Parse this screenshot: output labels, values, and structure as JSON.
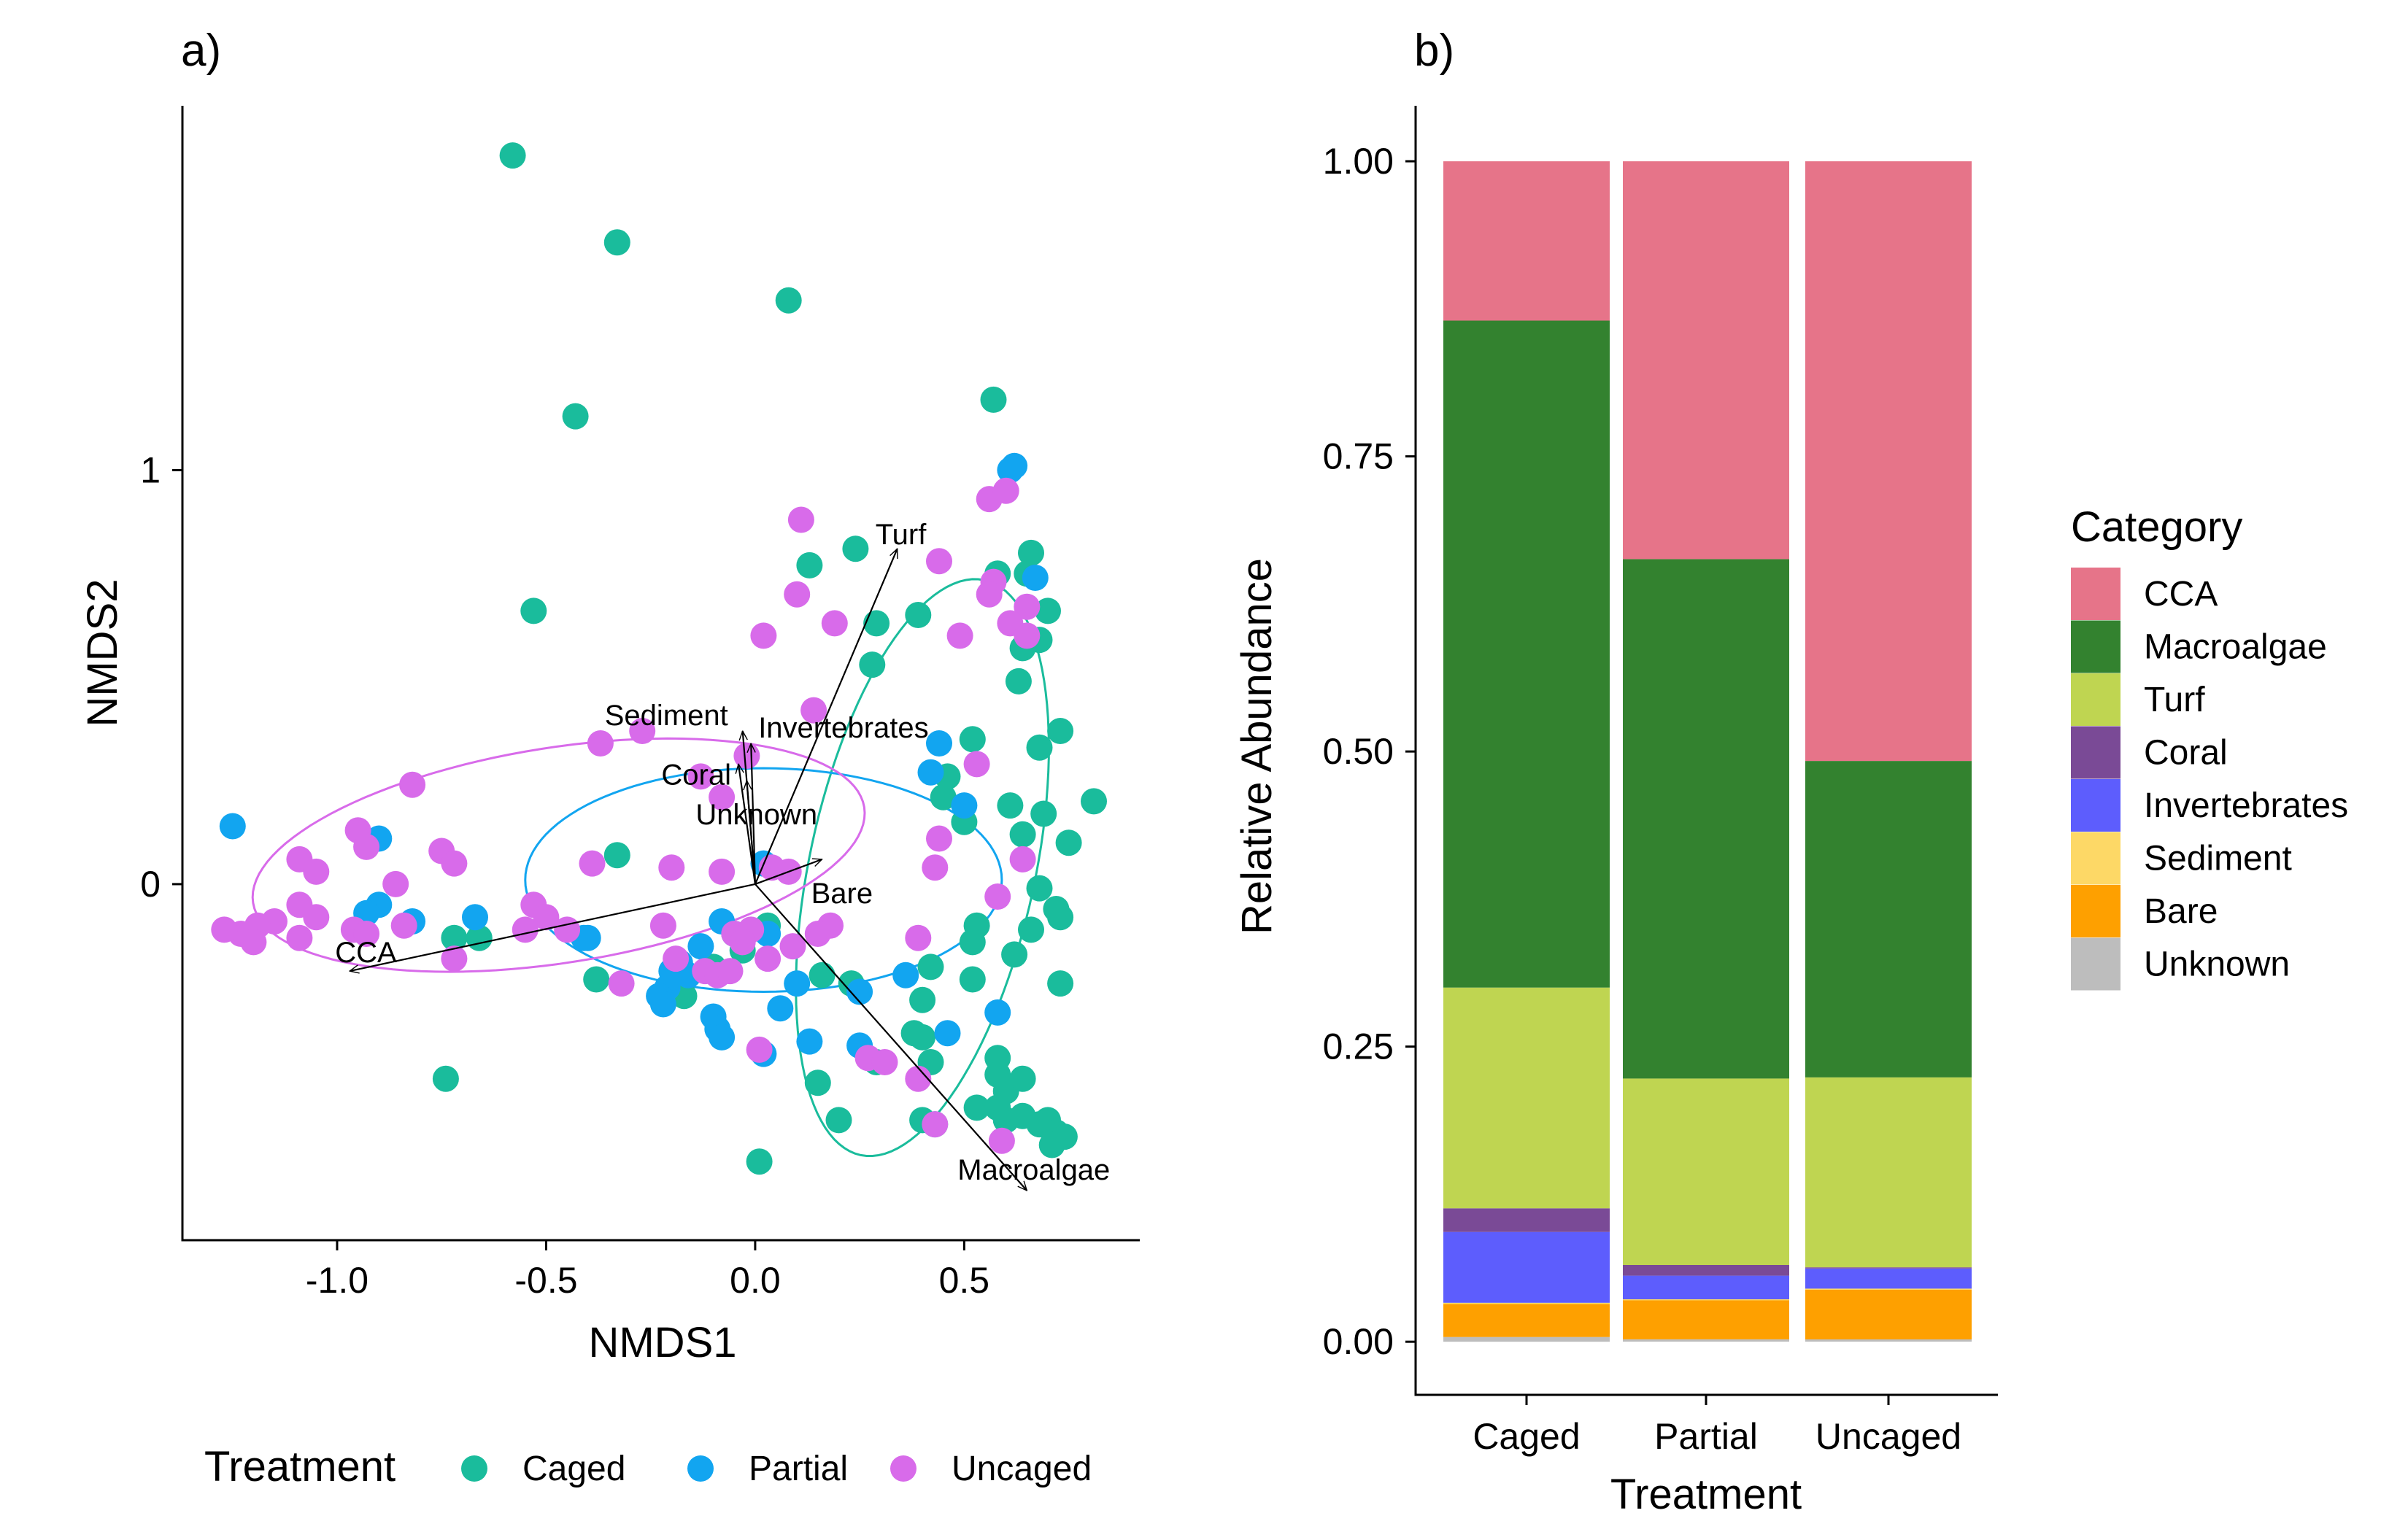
{
  "panels": {
    "a": {
      "tag": "a)"
    },
    "b": {
      "tag": "b)"
    }
  },
  "colors": {
    "Caged": "#1abc9c",
    "Partial": "#12a5f0",
    "Uncaged": "#d86bea",
    "CCA": "#e67489",
    "Macroalgae": "#33822f",
    "Turf": "#bfd551",
    "Coral": "#7a4a96",
    "Invertebrates": "#5d5dfd",
    "Sediment": "#fdd866",
    "Bare": "#fea000",
    "Unknown": "#bdbdbd"
  },
  "chart_data": [
    {
      "type": "scatter",
      "xlabel": "NMDS1",
      "ylabel": "NMDS2",
      "xlim": [
        -1.37,
        0.92
      ],
      "ylim": [
        -0.86,
        1.88
      ],
      "xticks": [
        "-1.0",
        "-0.5",
        "0.0",
        "0.5"
      ],
      "xtick_values": [
        -1.0,
        -0.5,
        0.0,
        0.5
      ],
      "yticks": [
        "0",
        "1"
      ],
      "ytick_values": [
        0,
        1
      ],
      "grid": false,
      "legend": {
        "title": "Treatment",
        "position": "bottom",
        "entries": [
          "Caged",
          "Partial",
          "Uncaged"
        ]
      },
      "series": [
        {
          "name": "Caged",
          "points": [
            [
              -0.58,
              1.76
            ],
            [
              -0.33,
              1.55
            ],
            [
              0.08,
              1.41
            ],
            [
              -0.43,
              1.13
            ],
            [
              -0.53,
              0.66
            ],
            [
              0.57,
              1.17
            ],
            [
              0.58,
              0.75
            ],
            [
              0.65,
              0.75
            ],
            [
              0.66,
              0.8
            ],
            [
              0.13,
              0.77
            ],
            [
              0.24,
              0.81
            ],
            [
              0.29,
              0.63
            ],
            [
              0.39,
              0.65
            ],
            [
              0.7,
              0.66
            ],
            [
              0.68,
              0.59
            ],
            [
              0.64,
              0.57
            ],
            [
              0.63,
              0.49
            ],
            [
              0.28,
              0.53
            ],
            [
              0.73,
              0.37
            ],
            [
              0.68,
              0.33
            ],
            [
              0.52,
              0.35
            ],
            [
              0.46,
              0.26
            ],
            [
              0.61,
              0.19
            ],
            [
              0.69,
              0.17
            ],
            [
              0.81,
              0.2
            ],
            [
              0.75,
              0.1
            ],
            [
              0.5,
              0.15
            ],
            [
              0.45,
              0.21
            ],
            [
              0.64,
              0.12
            ],
            [
              0.68,
              -0.01
            ],
            [
              0.72,
              -0.06
            ],
            [
              0.73,
              -0.08
            ],
            [
              0.66,
              -0.11
            ],
            [
              0.53,
              -0.1
            ],
            [
              0.52,
              -0.14
            ],
            [
              0.62,
              -0.17
            ],
            [
              0.52,
              -0.23
            ],
            [
              0.73,
              -0.24
            ],
            [
              0.42,
              -0.2
            ],
            [
              0.4,
              -0.28
            ],
            [
              0.38,
              -0.36
            ],
            [
              0.42,
              -0.43
            ],
            [
              0.58,
              -0.42
            ],
            [
              0.58,
              -0.46
            ],
            [
              0.6,
              -0.5
            ],
            [
              0.64,
              -0.47
            ],
            [
              0.58,
              -0.54
            ],
            [
              0.53,
              -0.54
            ],
            [
              0.6,
              -0.57
            ],
            [
              0.64,
              -0.56
            ],
            [
              0.68,
              -0.58
            ],
            [
              0.7,
              -0.57
            ],
            [
              0.72,
              -0.6
            ],
            [
              0.74,
              -0.61
            ],
            [
              0.71,
              -0.63
            ],
            [
              0.43,
              -0.58
            ],
            [
              0.4,
              -0.57
            ],
            [
              0.2,
              -0.57
            ],
            [
              0.15,
              -0.48
            ],
            [
              0.29,
              -0.43
            ],
            [
              0.23,
              -0.24
            ],
            [
              0.16,
              -0.22
            ],
            [
              0.4,
              -0.37
            ],
            [
              0.01,
              -0.67
            ],
            [
              -0.74,
              -0.47
            ],
            [
              -0.33,
              0.07
            ],
            [
              -0.38,
              -0.23
            ],
            [
              -0.72,
              -0.13
            ],
            [
              -0.66,
              -0.13
            ],
            [
              -0.17,
              -0.27
            ],
            [
              -0.1,
              -0.2
            ],
            [
              -0.05,
              -0.12
            ],
            [
              -0.03,
              -0.16
            ],
            [
              0.03,
              -0.1
            ]
          ]
        },
        {
          "name": "Partial",
          "points": [
            [
              0.62,
              1.01
            ],
            [
              0.61,
              1.0
            ],
            [
              0.67,
              0.74
            ],
            [
              0.44,
              0.34
            ],
            [
              0.42,
              0.27
            ],
            [
              0.5,
              0.19
            ],
            [
              0.02,
              0.05
            ],
            [
              -1.25,
              0.14
            ],
            [
              -0.9,
              0.11
            ],
            [
              -0.9,
              -0.05
            ],
            [
              -0.93,
              -0.07
            ],
            [
              -0.82,
              -0.09
            ],
            [
              -0.67,
              -0.08
            ],
            [
              -0.41,
              -0.13
            ],
            [
              -0.4,
              -0.13
            ],
            [
              -0.08,
              -0.09
            ],
            [
              -0.13,
              -0.15
            ],
            [
              -0.18,
              -0.19
            ],
            [
              -0.2,
              -0.21
            ],
            [
              -0.16,
              -0.22
            ],
            [
              -0.21,
              -0.25
            ],
            [
              -0.23,
              -0.27
            ],
            [
              -0.22,
              -0.29
            ],
            [
              -0.1,
              -0.32
            ],
            [
              -0.09,
              -0.35
            ],
            [
              -0.08,
              -0.37
            ],
            [
              0.02,
              -0.41
            ],
            [
              0.06,
              -0.3
            ],
            [
              0.1,
              -0.24
            ],
            [
              0.13,
              -0.38
            ],
            [
              0.25,
              -0.26
            ],
            [
              0.36,
              -0.22
            ],
            [
              0.46,
              -0.36
            ],
            [
              0.58,
              -0.31
            ],
            [
              0.25,
              -0.39
            ],
            [
              0.03,
              -0.12
            ]
          ]
        },
        {
          "name": "Uncaged",
          "points": [
            [
              0.56,
              0.93
            ],
            [
              0.6,
              0.95
            ],
            [
              0.11,
              0.88
            ],
            [
              0.44,
              0.78
            ],
            [
              0.57,
              0.73
            ],
            [
              0.1,
              0.7
            ],
            [
              0.56,
              0.7
            ],
            [
              0.65,
              0.67
            ],
            [
              0.61,
              0.63
            ],
            [
              0.65,
              0.6
            ],
            [
              0.49,
              0.6
            ],
            [
              0.19,
              0.63
            ],
            [
              0.02,
              0.6
            ],
            [
              0.14,
              0.42
            ],
            [
              -0.37,
              0.34
            ],
            [
              -0.27,
              0.37
            ],
            [
              -0.02,
              0.31
            ],
            [
              0.53,
              0.29
            ],
            [
              -0.13,
              0.26
            ],
            [
              -0.08,
              0.21
            ],
            [
              -0.82,
              0.24
            ],
            [
              -1.09,
              0.06
            ],
            [
              -1.05,
              0.03
            ],
            [
              -0.95,
              0.13
            ],
            [
              -0.93,
              0.09
            ],
            [
              -0.75,
              0.08
            ],
            [
              -0.72,
              0.05
            ],
            [
              -0.39,
              0.05
            ],
            [
              -0.2,
              0.04
            ],
            [
              -0.08,
              0.03
            ],
            [
              0.04,
              0.04
            ],
            [
              0.08,
              0.03
            ],
            [
              0.44,
              0.11
            ],
            [
              0.43,
              0.04
            ],
            [
              0.64,
              0.06
            ],
            [
              0.58,
              -0.03
            ],
            [
              -0.86,
              0.0
            ],
            [
              -1.09,
              -0.05
            ],
            [
              -1.05,
              -0.08
            ],
            [
              -1.15,
              -0.09
            ],
            [
              -1.19,
              -0.1
            ],
            [
              -1.23,
              -0.12
            ],
            [
              -1.27,
              -0.11
            ],
            [
              -1.2,
              -0.14
            ],
            [
              -1.09,
              -0.13
            ],
            [
              -0.96,
              -0.11
            ],
            [
              -0.93,
              -0.12
            ],
            [
              -0.84,
              -0.1
            ],
            [
              -0.53,
              -0.05
            ],
            [
              -0.5,
              -0.08
            ],
            [
              -0.45,
              -0.11
            ],
            [
              -0.22,
              -0.1
            ],
            [
              -0.05,
              -0.12
            ],
            [
              -0.01,
              -0.11
            ],
            [
              -0.03,
              -0.14
            ],
            [
              0.09,
              -0.15
            ],
            [
              0.03,
              -0.18
            ],
            [
              -0.19,
              -0.18
            ],
            [
              -0.12,
              -0.21
            ],
            [
              -0.09,
              -0.22
            ],
            [
              -0.06,
              -0.21
            ],
            [
              -0.32,
              -0.24
            ],
            [
              -0.72,
              -0.18
            ],
            [
              -0.55,
              -0.11
            ],
            [
              0.39,
              -0.13
            ],
            [
              0.18,
              -0.1
            ],
            [
              0.01,
              -0.4
            ],
            [
              0.27,
              -0.42
            ],
            [
              0.31,
              -0.43
            ],
            [
              0.39,
              -0.47
            ],
            [
              0.43,
              -0.58
            ],
            [
              0.59,
              -0.62
            ],
            [
              0.15,
              -0.12
            ]
          ]
        }
      ],
      "ellipses": [
        {
          "series": "Caged",
          "center": [
            0.4,
            0.04
          ],
          "axes": [
            0.71,
            0.27
          ],
          "angle": 78
        },
        {
          "series": "Partial",
          "center": [
            0.02,
            0.01
          ],
          "axes": [
            0.57,
            0.27
          ],
          "angle": 0
        },
        {
          "series": "Uncaged",
          "center": [
            -0.47,
            0.07
          ],
          "axes": [
            0.74,
            0.26
          ],
          "angle": 9
        }
      ],
      "vectors": [
        {
          "label": "Turf",
          "x": 0.34,
          "y": 0.81
        },
        {
          "label": "Sediment",
          "x": -0.03,
          "y": 0.37
        },
        {
          "label": "Invertebrates",
          "x": -0.01,
          "y": 0.34
        },
        {
          "label": "Coral",
          "x": -0.04,
          "y": 0.29
        },
        {
          "label": "Unknown",
          "x": -0.02,
          "y": 0.25
        },
        {
          "label": "Bare",
          "x": 0.16,
          "y": 0.06
        },
        {
          "label": "CCA",
          "x": -0.97,
          "y": -0.21
        },
        {
          "label": "Macroalgae",
          "x": 0.65,
          "y": -0.74
        }
      ]
    },
    {
      "type": "bar",
      "stacked": true,
      "xlabel": "Treatment",
      "ylabel": "Relative Abundance",
      "ylim": [
        -0.045,
        1.047
      ],
      "yticks": [
        "0.00",
        "0.25",
        "0.50",
        "0.75",
        "1.00"
      ],
      "ytick_values": [
        0,
        0.25,
        0.5,
        0.75,
        1.0
      ],
      "grid": false,
      "categories": [
        "Caged",
        "Partial",
        "Uncaged"
      ],
      "legend": {
        "title": "Category",
        "position": "right"
      },
      "series": [
        {
          "name": "Unknown",
          "values": [
            0.004,
            0.002,
            0.002
          ]
        },
        {
          "name": "Bare",
          "values": [
            0.028,
            0.033,
            0.042
          ]
        },
        {
          "name": "Sediment",
          "values": [
            0.001,
            0.001,
            0.001
          ]
        },
        {
          "name": "Invertebrates",
          "values": [
            0.06,
            0.02,
            0.017
          ]
        },
        {
          "name": "Coral",
          "values": [
            0.02,
            0.009,
            0.001
          ]
        },
        {
          "name": "Turf",
          "values": [
            0.187,
            0.158,
            0.161
          ]
        },
        {
          "name": "Macroalgae",
          "values": [
            0.565,
            0.44,
            0.268
          ]
        },
        {
          "name": "CCA",
          "values": [
            0.135,
            0.337,
            0.508
          ]
        }
      ],
      "legend_order": [
        "CCA",
        "Macroalgae",
        "Turf",
        "Coral",
        "Invertebrates",
        "Sediment",
        "Bare",
        "Unknown"
      ]
    }
  ]
}
